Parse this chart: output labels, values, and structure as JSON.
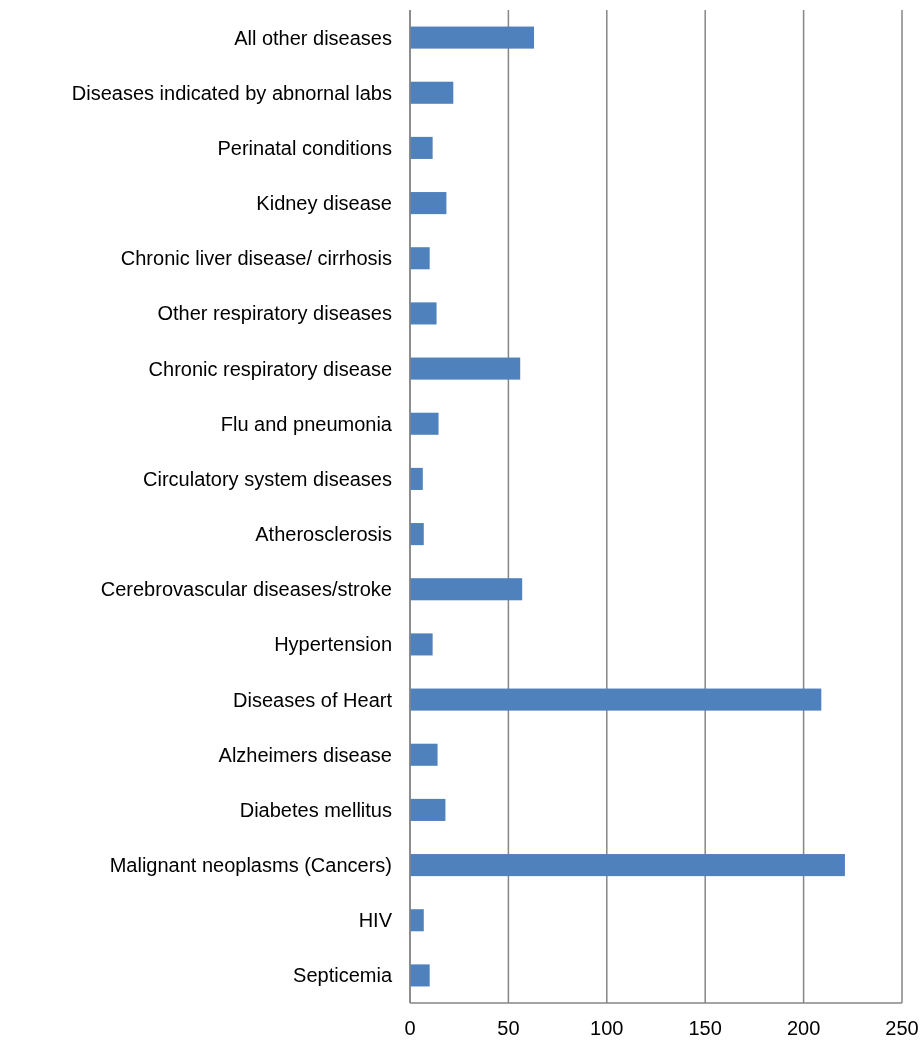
{
  "chart_data": {
    "type": "bar",
    "orientation": "horizontal",
    "categories": [
      "All other diseases",
      "Diseases indicated by abnornal labs",
      "Perinatal conditions",
      "Kidney disease",
      "Chronic liver disease/ cirrhosis",
      "Other respiratory diseases",
      "Chronic respiratory disease",
      "Flu and pneumonia",
      "Circulatory system diseases",
      "Atherosclerosis",
      "Cerebrovascular diseases/stroke",
      "Hypertension",
      "Diseases of Heart",
      "Alzheimers disease",
      "Diabetes mellitus",
      "Malignant neoplasms (Cancers)",
      "HIV",
      "Septicemia"
    ],
    "values": [
      63,
      22,
      11.5,
      18.5,
      10,
      13.5,
      56,
      14.5,
      6.5,
      7,
      57,
      11.5,
      209,
      14,
      18,
      221,
      7,
      10
    ],
    "color": "#4f81bd",
    "xlim": [
      0,
      250
    ],
    "xticks": [
      0,
      50,
      100,
      150,
      200,
      250
    ],
    "grid": "x"
  }
}
